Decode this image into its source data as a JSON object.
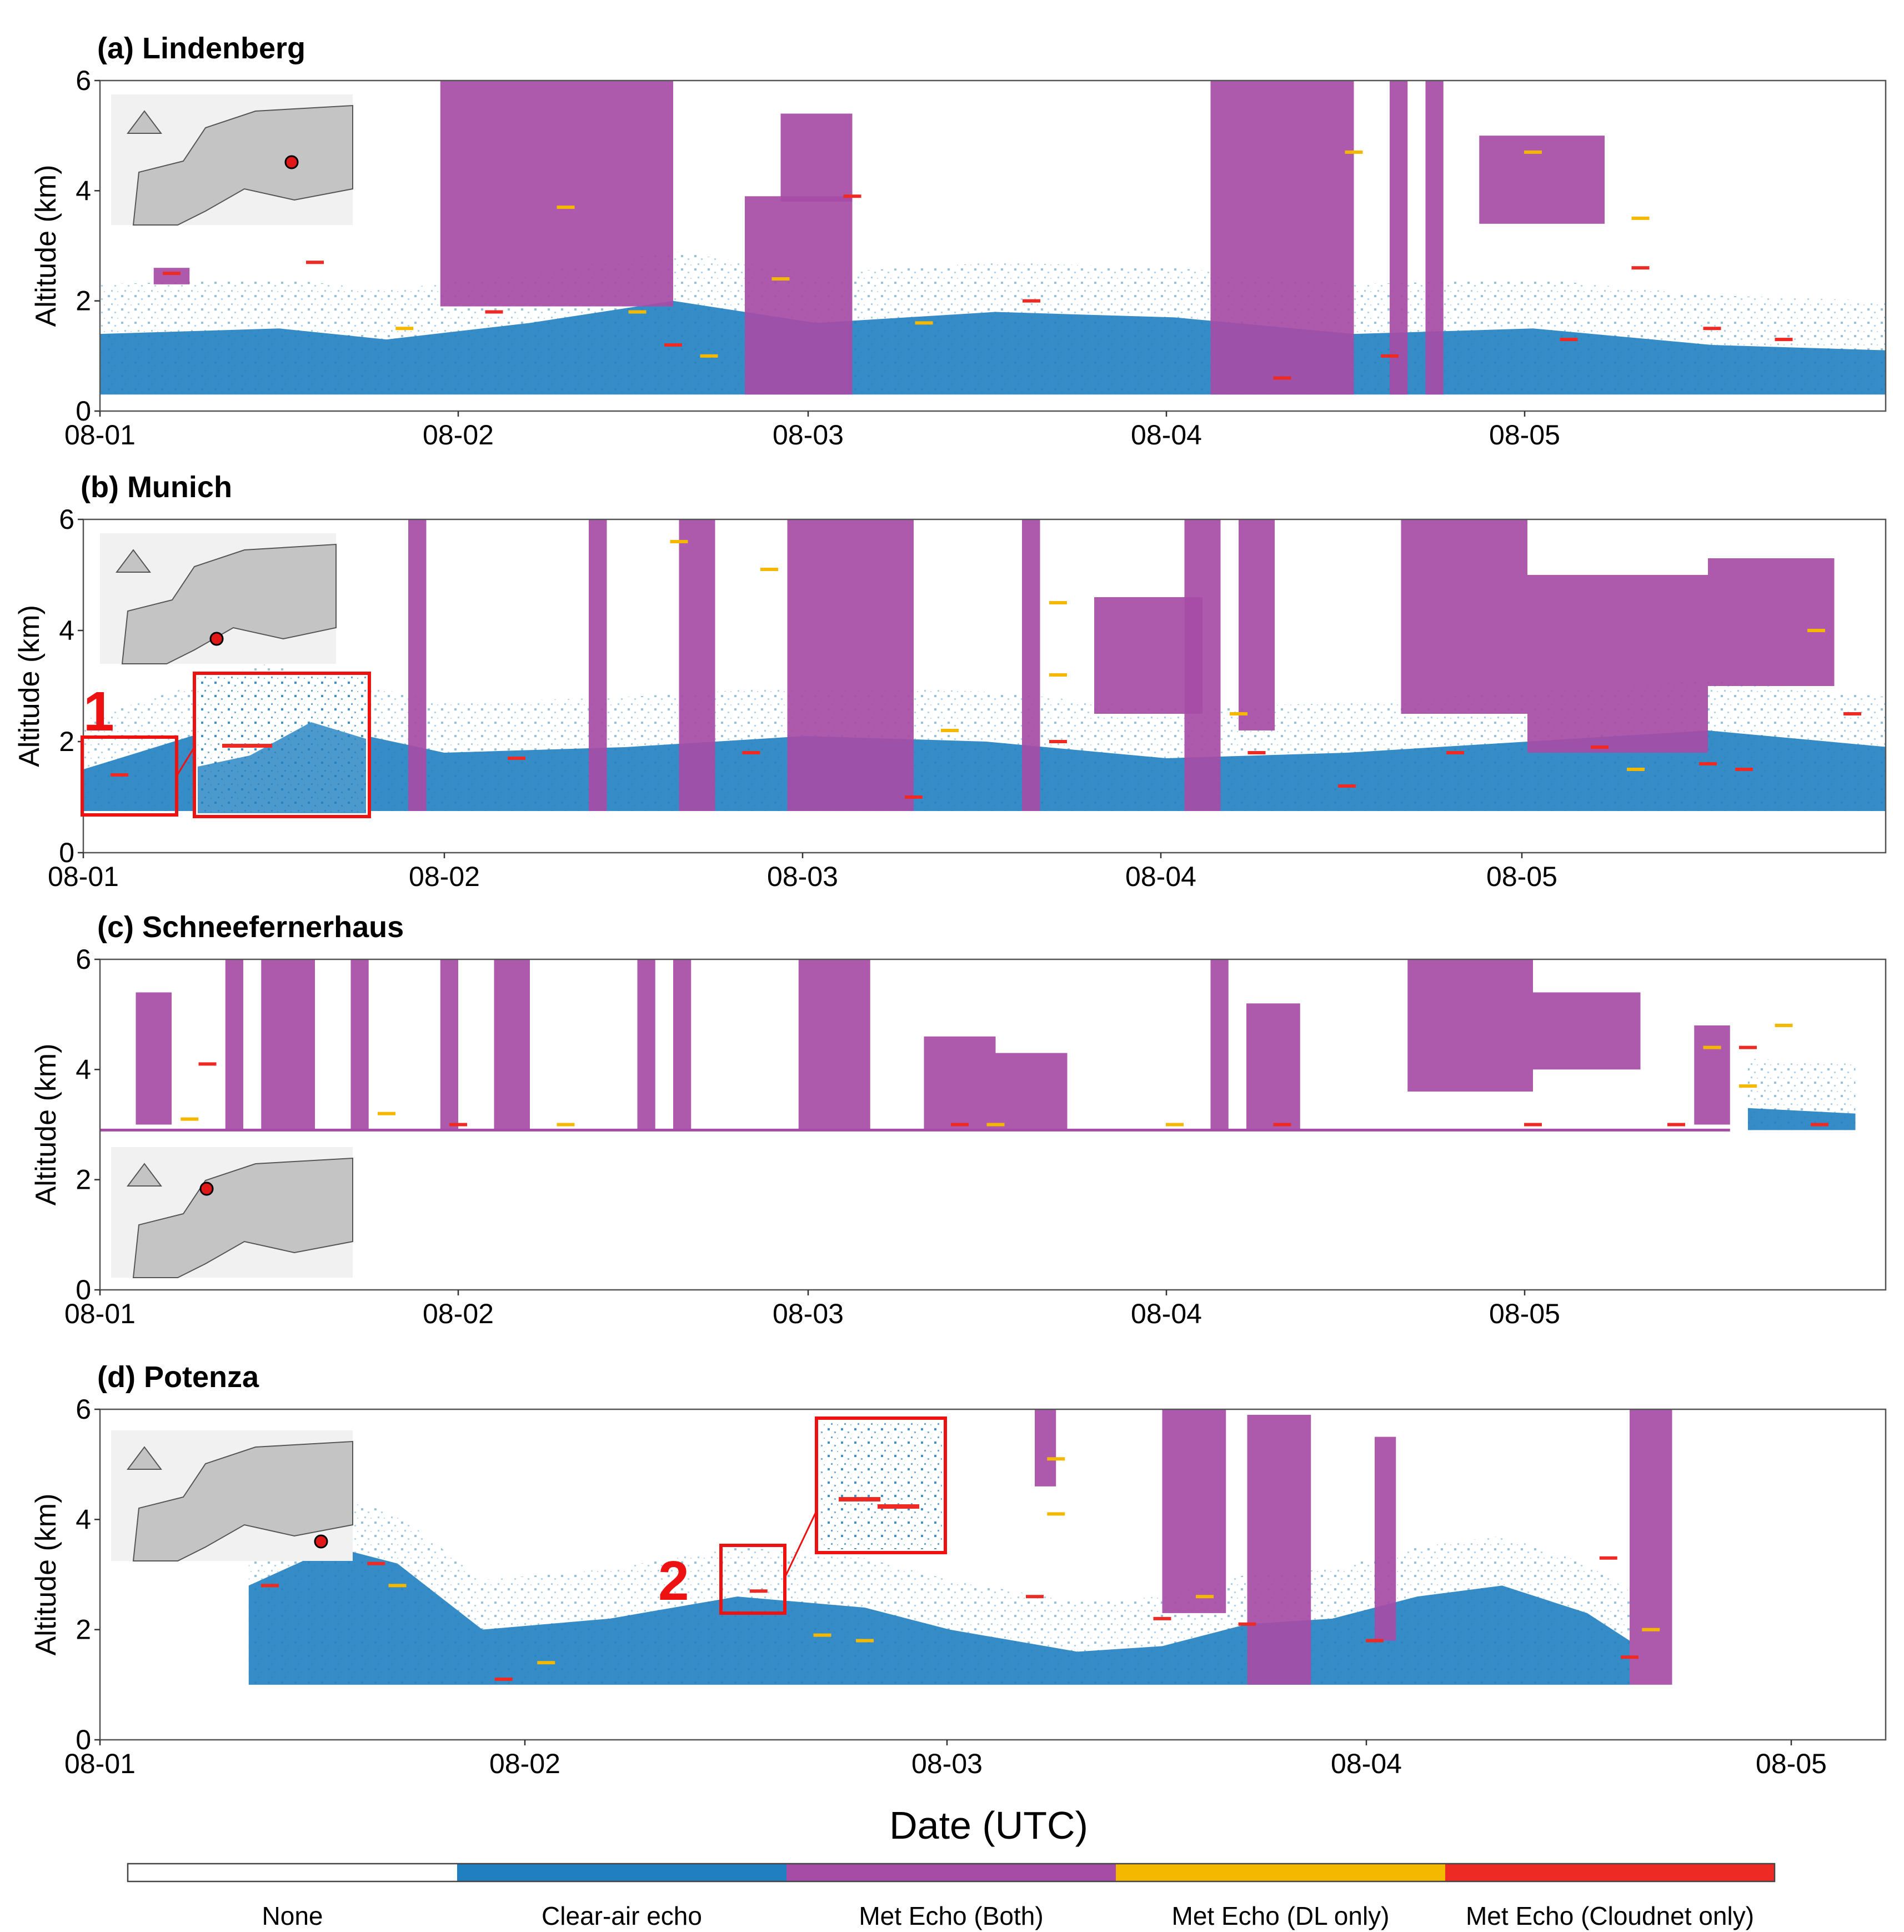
{
  "chart_data": {
    "type": "heatmap",
    "x_label": "Date (UTC)",
    "y_label": "Altitude (km)",
    "ylim": [
      0,
      6
    ],
    "y_ticks": [
      "0",
      "2",
      "4",
      "6"
    ],
    "callouts": [
      "1",
      "2"
    ],
    "colors": {
      "none": "#ffffff",
      "clear_air": "#1f7fc0",
      "both": "#a64ca6",
      "dl_only": "#f5b800",
      "cloudnet_only": "#ee2a24"
    },
    "legend": [
      {
        "label": "None",
        "color": "#ffffff"
      },
      {
        "label": "Clear-air echo",
        "color": "#1f7fc0"
      },
      {
        "label": "Met Echo (Both)",
        "color": "#a64ca6"
      },
      {
        "label": "Met Echo (DL only)",
        "color": "#f5b800"
      },
      {
        "label": "Met Echo (Cloudnet only)",
        "color": "#ee2a24"
      }
    ],
    "panels": [
      {
        "title": "(a) Lindenberg",
        "x_ticks": [
          "08-01",
          "08-02",
          "08-03",
          "08-04",
          "08-05"
        ],
        "xlim": [
          0,
          5
        ],
        "ground_km": 0.3,
        "clear_air": [
          [
            0,
            1.4
          ],
          [
            0.5,
            1.5
          ],
          [
            0.8,
            1.3
          ],
          [
            1.2,
            1.6
          ],
          [
            1.6,
            2.0
          ],
          [
            2.0,
            1.6
          ],
          [
            2.5,
            1.8
          ],
          [
            3.0,
            1.7
          ],
          [
            3.5,
            1.4
          ],
          [
            4.0,
            1.5
          ],
          [
            4.5,
            1.2
          ],
          [
            5.0,
            1.1
          ]
        ],
        "met_both": [
          [
            0.95,
            1.6,
            1.9,
            6.0
          ],
          [
            1.9,
            2.1,
            3.8,
            5.4
          ],
          [
            1.8,
            2.1,
            0.3,
            3.9
          ],
          [
            3.1,
            3.5,
            0.3,
            6.0
          ],
          [
            3.6,
            3.65,
            0.3,
            6.0
          ],
          [
            3.7,
            3.75,
            0.3,
            6.0
          ],
          [
            0.15,
            0.25,
            2.3,
            2.6
          ],
          [
            3.85,
            4.2,
            3.4,
            5.0
          ]
        ],
        "met_dl": [
          [
            1.3,
            3.7
          ],
          [
            1.5,
            1.8
          ],
          [
            1.9,
            2.4
          ],
          [
            2.3,
            1.6
          ],
          [
            3.5,
            4.7
          ],
          [
            4.0,
            4.7
          ],
          [
            4.3,
            3.5
          ],
          [
            0.85,
            1.5
          ],
          [
            1.7,
            1.0
          ]
        ],
        "met_cloudnet": [
          [
            0.2,
            2.5
          ],
          [
            0.6,
            2.7
          ],
          [
            1.1,
            1.8
          ],
          [
            1.6,
            1.2
          ],
          [
            2.1,
            3.9
          ],
          [
            2.6,
            2.0
          ],
          [
            3.3,
            0.6
          ],
          [
            3.6,
            1.0
          ],
          [
            4.1,
            1.3
          ],
          [
            4.3,
            2.6
          ],
          [
            4.5,
            1.5
          ],
          [
            4.7,
            1.3
          ]
        ]
      },
      {
        "title": "(b) Munich",
        "x_ticks": [
          "08-01",
          "08-02",
          "08-03",
          "08-04",
          "08-05"
        ],
        "xlim": [
          0,
          5
        ],
        "ground_km": 0.75,
        "clear_air": [
          [
            0,
            1.5
          ],
          [
            0.5,
            2.5
          ],
          [
            1.0,
            1.8
          ],
          [
            1.5,
            1.9
          ],
          [
            2.0,
            2.1
          ],
          [
            2.5,
            2.0
          ],
          [
            3.0,
            1.7
          ],
          [
            3.5,
            1.8
          ],
          [
            4.0,
            2.0
          ],
          [
            4.5,
            2.2
          ],
          [
            5.0,
            1.9
          ]
        ],
        "met_both": [
          [
            0.9,
            0.95,
            0.75,
            6.0
          ],
          [
            1.4,
            1.45,
            0.75,
            6.0
          ],
          [
            1.65,
            1.75,
            0.75,
            6.0
          ],
          [
            1.95,
            2.3,
            0.75,
            6.0
          ],
          [
            2.6,
            2.65,
            0.75,
            6.0
          ],
          [
            2.8,
            3.1,
            2.5,
            4.6
          ],
          [
            3.05,
            3.15,
            0.75,
            6.0
          ],
          [
            3.2,
            3.3,
            2.2,
            6.0
          ],
          [
            3.65,
            4.0,
            2.5,
            6.0
          ],
          [
            4.0,
            4.5,
            1.8,
            5.0
          ],
          [
            4.5,
            4.85,
            3.0,
            5.3
          ]
        ],
        "met_dl": [
          [
            1.65,
            5.6
          ],
          [
            1.9,
            5.1
          ],
          [
            2.4,
            2.2
          ],
          [
            2.7,
            4.5
          ],
          [
            2.7,
            3.2
          ],
          [
            3.2,
            2.5
          ],
          [
            4.3,
            1.5
          ],
          [
            4.8,
            4.0
          ]
        ],
        "met_cloudnet": [
          [
            0.1,
            1.4
          ],
          [
            1.2,
            1.7
          ],
          [
            1.85,
            1.8
          ],
          [
            2.3,
            1.0
          ],
          [
            2.7,
            2.0
          ],
          [
            3.25,
            1.8
          ],
          [
            3.5,
            1.2
          ],
          [
            3.8,
            1.8
          ],
          [
            4.2,
            1.9
          ],
          [
            4.5,
            1.6
          ],
          [
            4.6,
            1.5
          ],
          [
            4.9,
            2.5
          ]
        ]
      },
      {
        "title": "(c) Schneefernerhaus",
        "x_ticks": [
          "08-01",
          "08-02",
          "08-03",
          "08-04",
          "08-05"
        ],
        "xlim": [
          0,
          5
        ],
        "ground_km": 2.9,
        "clear_air": [
          [
            4.6,
            3.3
          ],
          [
            4.9,
            3.2
          ]
        ],
        "met_both": [
          [
            0.1,
            0.2,
            3.0,
            5.4
          ],
          [
            0.35,
            0.4,
            2.9,
            6.0
          ],
          [
            0.45,
            0.6,
            2.9,
            6.0
          ],
          [
            0.7,
            0.75,
            2.9,
            6.0
          ],
          [
            0.95,
            1.0,
            2.9,
            6.0
          ],
          [
            1.1,
            1.2,
            2.9,
            6.0
          ],
          [
            1.5,
            1.55,
            2.9,
            6.0
          ],
          [
            1.6,
            1.65,
            2.9,
            6.0
          ],
          [
            1.95,
            2.15,
            2.9,
            6.0
          ],
          [
            2.3,
            2.5,
            2.9,
            4.6
          ],
          [
            2.5,
            2.7,
            2.9,
            4.3
          ],
          [
            3.1,
            3.15,
            2.9,
            6.0
          ],
          [
            3.2,
            3.35,
            2.9,
            5.2
          ],
          [
            3.65,
            4.0,
            3.6,
            6.0
          ],
          [
            4.0,
            4.3,
            4.0,
            5.4
          ],
          [
            4.45,
            4.55,
            3.0,
            4.8
          ]
        ],
        "met_dl": [
          [
            0.25,
            3.1
          ],
          [
            0.8,
            3.2
          ],
          [
            1.3,
            3.0
          ],
          [
            2.5,
            3.0
          ],
          [
            3.0,
            3.0
          ],
          [
            4.5,
            4.4
          ],
          [
            4.6,
            3.7
          ],
          [
            4.7,
            4.8
          ]
        ],
        "met_cloudnet": [
          [
            0.3,
            4.1
          ],
          [
            1.0,
            3.0
          ],
          [
            2.4,
            3.0
          ],
          [
            3.3,
            3.0
          ],
          [
            4.0,
            3.0
          ],
          [
            4.4,
            3.0
          ],
          [
            4.6,
            4.4
          ],
          [
            4.8,
            3.0
          ]
        ]
      },
      {
        "title": "(d) Potenza",
        "x_ticks": [
          "08-01",
          "08-02",
          "08-03",
          "08-04",
          "08-05"
        ],
        "xlim": [
          0,
          4.1
        ],
        "ground_km": 1.0,
        "clear_air": [
          [
            0.35,
            2.8
          ],
          [
            0.55,
            3.5
          ],
          [
            0.7,
            3.2
          ],
          [
            0.9,
            2.0
          ],
          [
            1.2,
            2.2
          ],
          [
            1.5,
            2.6
          ],
          [
            1.8,
            2.4
          ],
          [
            2.0,
            2.0
          ],
          [
            2.3,
            1.6
          ],
          [
            2.5,
            1.7
          ],
          [
            2.7,
            2.1
          ],
          [
            2.9,
            2.2
          ],
          [
            3.1,
            2.6
          ],
          [
            3.3,
            2.8
          ],
          [
            3.5,
            2.3
          ],
          [
            3.6,
            1.8
          ]
        ],
        "met_both": [
          [
            2.2,
            2.25,
            4.6,
            6.0
          ],
          [
            2.5,
            2.65,
            2.3,
            6.0
          ],
          [
            2.7,
            2.85,
            1.0,
            5.9
          ],
          [
            3.0,
            3.05,
            1.8,
            5.5
          ],
          [
            3.6,
            3.7,
            1.0,
            6.0
          ]
        ],
        "met_dl": [
          [
            0.7,
            2.8
          ],
          [
            1.05,
            1.4
          ],
          [
            1.7,
            1.9
          ],
          [
            1.8,
            1.8
          ],
          [
            2.25,
            4.1
          ],
          [
            2.25,
            5.1
          ],
          [
            2.6,
            2.6
          ],
          [
            3.65,
            2.0
          ]
        ],
        "met_cloudnet": [
          [
            0.4,
            2.8
          ],
          [
            0.65,
            3.2
          ],
          [
            0.95,
            1.1
          ],
          [
            1.55,
            2.7
          ],
          [
            2.2,
            2.6
          ],
          [
            2.5,
            2.2
          ],
          [
            2.7,
            2.1
          ],
          [
            3.0,
            1.8
          ],
          [
            3.55,
            3.3
          ],
          [
            3.6,
            1.5
          ]
        ]
      }
    ]
  }
}
